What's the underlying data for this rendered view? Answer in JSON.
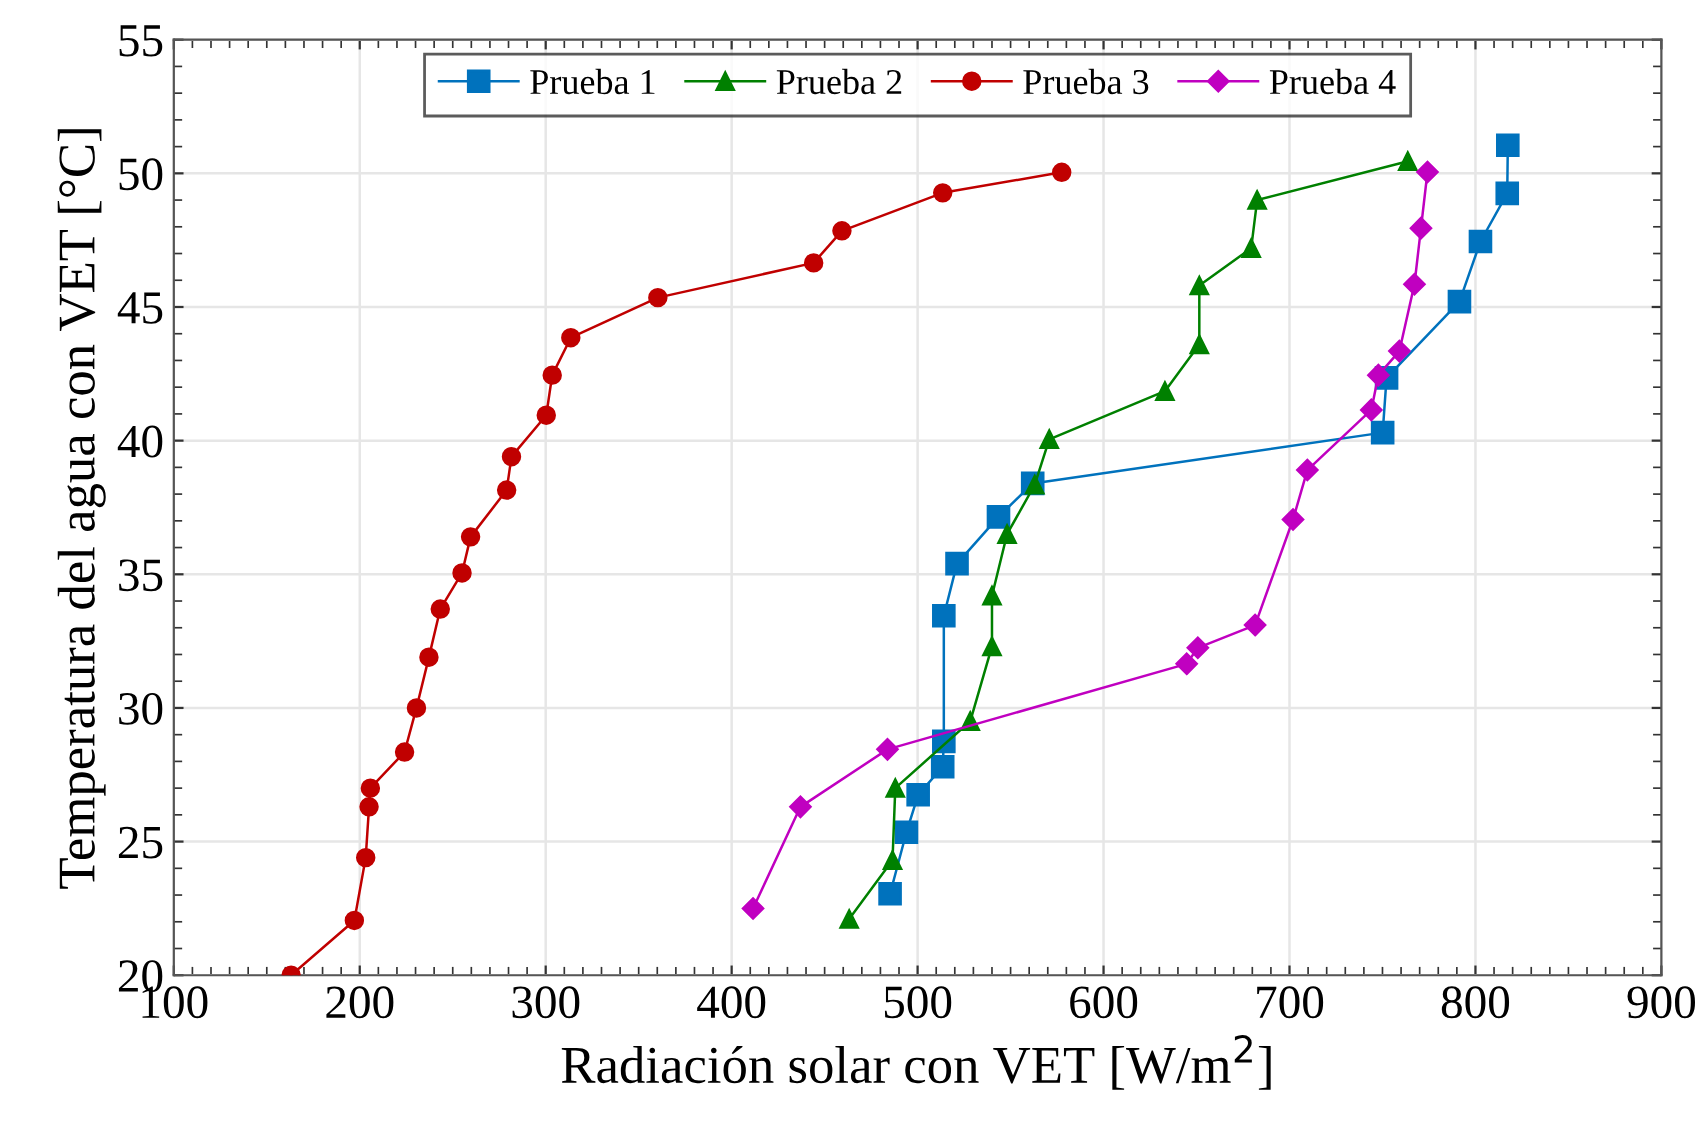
{
  "chart_data": {
    "type": "line",
    "xlabel": "Radiación solar con VET [W/m$^{2}$]",
    "ylabel": "Temperatura del agua con VET [°C]",
    "xlim": [
      100,
      900
    ],
    "xticks": [
      100,
      200,
      300,
      400,
      500,
      600,
      700,
      800,
      900
    ],
    "ylim": [
      20,
      55
    ],
    "yticks": [
      20,
      25,
      30,
      35,
      40,
      45,
      50,
      55
    ],
    "grid": true,
    "legend": "top",
    "line_style": "solid",
    "series": [
      {
        "name": "Prueba 1",
        "color": "#0072bd",
        "marker": "square",
        "x": [
          485.2,
          494,
          500.3,
          513.5,
          514.1,
          514.1,
          521.2,
          543.5,
          561.9,
          750.1,
          752.2,
          791.4,
          802.7,
          817.1,
          817.4
        ],
        "values": [
          23.05,
          25.35,
          26.75,
          27.8,
          28.75,
          33.45,
          35.4,
          37.15,
          38.4,
          40.3,
          42.35,
          45.2,
          47.45,
          49.25,
          51.05
        ]
      },
      {
        "name": "Prueba 2",
        "color": "#008000",
        "marker": "triangle",
        "x": [
          463.2,
          486.5,
          488,
          528.3,
          540,
          540,
          548.1,
          563,
          570.8,
          633,
          651.5,
          651.5,
          679.4,
          682.6,
          763.6
        ],
        "values": [
          22.1,
          24.3,
          27.0,
          29.5,
          32.3,
          34.2,
          36.5,
          38.35,
          40.05,
          41.85,
          43.6,
          45.8,
          47.2,
          49.0,
          50.45
        ]
      },
      {
        "name": "Prueba 3",
        "color": "#c00000",
        "marker": "circle",
        "x": [
          163.1,
          197.1,
          203.2,
          205,
          205.7,
          224.1,
          230.5,
          237.2,
          243.3,
          255,
          259.6,
          279,
          281.6,
          300.3,
          303.5,
          313.5,
          360.3,
          444.1,
          459.3,
          513.5,
          577.5
        ],
        "values": [
          20.0,
          22.05,
          24.4,
          26.3,
          27.0,
          28.35,
          30.0,
          31.9,
          33.7,
          35.05,
          36.4,
          38.15,
          39.4,
          40.95,
          42.45,
          43.85,
          45.35,
          46.65,
          47.85,
          49.27,
          50.04
        ]
      },
      {
        "name": "Prueba 4",
        "color": "#c000c0",
        "marker": "diamond",
        "x": [
          411.5,
          437,
          483.8,
          644.7,
          650.7,
          681.5,
          701.9,
          709.6,
          744,
          747.8,
          759.1,
          767.2,
          770.7,
          774.2
        ],
        "values": [
          22.5,
          26.3,
          28.45,
          31.65,
          32.25,
          33.1,
          37.05,
          38.9,
          41.15,
          42.45,
          43.35,
          45.85,
          47.95,
          50.05
        ]
      }
    ]
  }
}
